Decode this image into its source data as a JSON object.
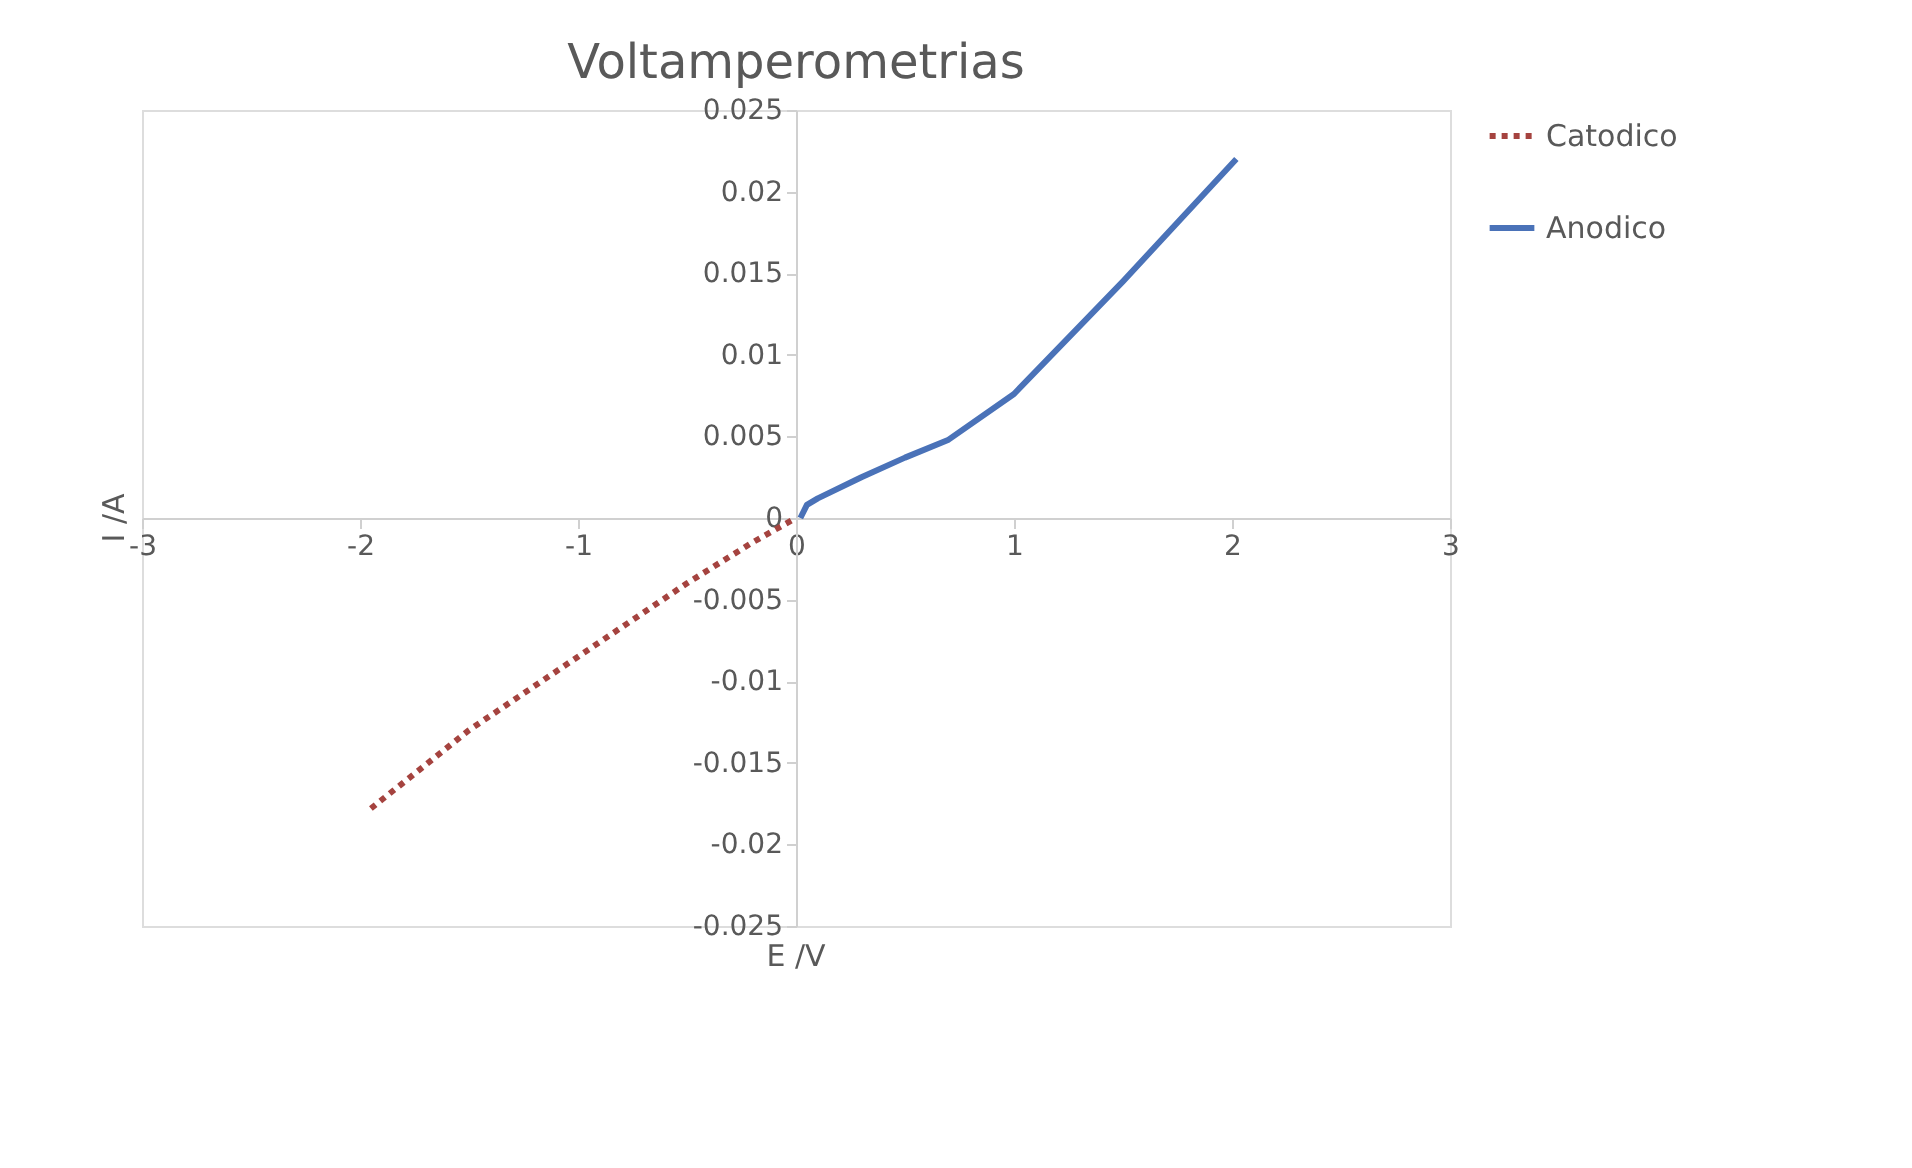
{
  "chart_data": {
    "type": "line",
    "title": "Voltamperometrias",
    "xlabel": "E /V",
    "ylabel": "I /A",
    "xlim": [
      -3,
      3
    ],
    "xticks": [
      -3,
      -2,
      -1,
      0,
      1,
      2,
      3
    ],
    "ylim": [
      -0.025,
      0.025
    ],
    "yticks": [
      -0.025,
      -0.02,
      -0.015,
      -0.01,
      -0.005,
      0,
      0.005,
      0.01,
      0.015,
      0.02,
      0.025
    ],
    "grid": false,
    "legend": "right",
    "marker": "none",
    "series": [
      {
        "name": "Catodico",
        "color": "#a5433f",
        "line_style": "dotted",
        "x": [
          -1.95,
          -1.5,
          -1.0,
          -0.5,
          -0.2,
          0
        ],
        "values": [
          -0.0178,
          -0.013,
          -0.0085,
          -0.004,
          -0.0015,
          0
        ]
      },
      {
        "name": "Anodico",
        "color": "#4a72b8",
        "line_style": "solid",
        "x": [
          0.02,
          0.05,
          0.1,
          0.3,
          0.5,
          0.7,
          1.0,
          1.5,
          2.02
        ],
        "values": [
          0,
          0.0008,
          0.0012,
          0.0025,
          0.0037,
          0.0048,
          0.0076,
          0.0145,
          0.022
        ]
      }
    ]
  }
}
